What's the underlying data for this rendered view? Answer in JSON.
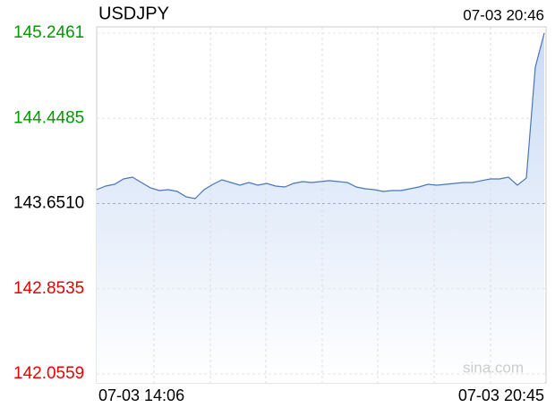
{
  "chart_data": {
    "type": "area",
    "title": "USDJPY",
    "timestamp": "07-03 20:46",
    "watermark": "sina.com",
    "categories": [
      "07-03 14:06",
      null,
      null,
      null,
      null,
      null,
      null,
      null,
      null,
      null,
      null,
      null,
      null,
      null,
      null,
      null,
      null,
      null,
      null,
      null,
      null,
      null,
      null,
      null,
      null,
      null,
      null,
      null,
      null,
      null,
      null,
      null,
      null,
      null,
      null,
      null,
      null,
      null,
      null,
      null,
      null,
      null,
      null,
      null,
      null,
      null,
      null,
      null,
      null,
      null,
      "07-03 20:45"
    ],
    "series": [
      {
        "name": "USDJPY",
        "color": "#4a76b8",
        "values": [
          143.781,
          143.814,
          143.831,
          143.881,
          143.898,
          143.848,
          143.798,
          143.772,
          143.781,
          143.764,
          143.714,
          143.697,
          143.781,
          143.831,
          143.873,
          143.848,
          143.823,
          143.848,
          143.823,
          143.839,
          143.814,
          143.806,
          143.839,
          143.856,
          143.848,
          143.856,
          143.865,
          143.856,
          143.848,
          143.806,
          143.789,
          143.781,
          143.764,
          143.772,
          143.772,
          143.789,
          143.806,
          143.831,
          143.823,
          143.831,
          143.839,
          143.848,
          143.848,
          143.865,
          143.881,
          143.881,
          143.898,
          143.823,
          143.89,
          144.928,
          145.246
        ]
      }
    ],
    "ylim": [
      142.0559,
      145.2461
    ],
    "yticks": [
      142.0559,
      142.8535,
      {
        "value": 143.651,
        "label": "143.6510"
      },
      144.4485,
      145.2461
    ],
    "ytick_colors": [
      "#e60000",
      "#e60000",
      "#000000",
      "#009900",
      "#009900"
    ],
    "reference_tick": 2,
    "grid": true
  }
}
